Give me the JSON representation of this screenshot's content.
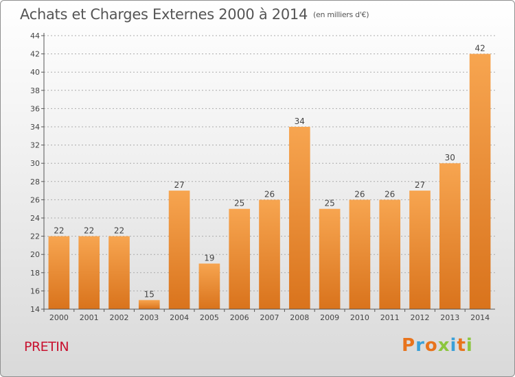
{
  "header": {
    "title": "Achats et Charges Externes 2000 à 2014",
    "unit": "(en milliers d'€)"
  },
  "footer": {
    "town": "PRETIN",
    "logo": "Proxiti",
    "logo_colors": [
      "#e8731c",
      "#3aa0d8",
      "#e8731c",
      "#8cc63f",
      "#3aa0d8",
      "#e8731c",
      "#8cc63f"
    ]
  },
  "colors": {
    "bar_light": "#f7a550",
    "bar_dark": "#d9731c",
    "axis": "#555555",
    "grid": "#aaaaaa",
    "title": "#555555",
    "town": "#c8102e"
  },
  "chart_data": {
    "type": "bar",
    "title": "Achats et Charges Externes 2000 à 2014",
    "subtitle": "(en milliers d'€)",
    "xlabel": "",
    "ylabel": "",
    "categories": [
      "2000",
      "2001",
      "2002",
      "2003",
      "2004",
      "2005",
      "2006",
      "2007",
      "2008",
      "2009",
      "2010",
      "2011",
      "2012",
      "2013",
      "2014"
    ],
    "values": [
      22,
      22,
      22,
      15,
      27,
      19,
      25,
      26,
      34,
      25,
      26,
      26,
      27,
      30,
      42
    ],
    "ylim": [
      14,
      44
    ],
    "yticks": [
      14,
      16,
      18,
      20,
      22,
      24,
      26,
      28,
      30,
      32,
      34,
      36,
      38,
      40,
      42,
      44
    ],
    "grid": true,
    "data_labels": true
  }
}
